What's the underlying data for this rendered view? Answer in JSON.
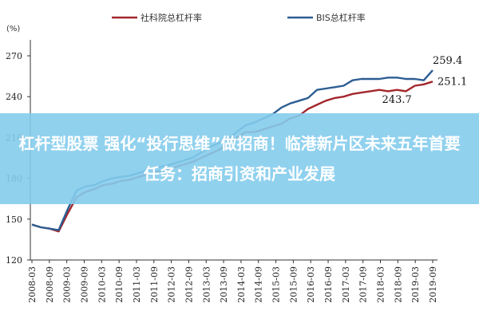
{
  "chart_data": {
    "type": "line",
    "unit": "(%)",
    "ylim": [
      120,
      270
    ],
    "yticks": [
      120,
      150,
      180,
      210,
      240,
      270
    ],
    "x": [
      "2008-03",
      "2008-06",
      "2008-09",
      "2008-12",
      "2009-03",
      "2009-06",
      "2009-09",
      "2009-12",
      "2010-03",
      "2010-06",
      "2010-09",
      "2010-12",
      "2011-03",
      "2011-06",
      "2011-09",
      "2011-12",
      "2012-03",
      "2012-06",
      "2012-09",
      "2012-12",
      "2013-03",
      "2013-06",
      "2013-09",
      "2013-12",
      "2014-03",
      "2014-06",
      "2014-09",
      "2014-12",
      "2015-03",
      "2015-06",
      "2015-09",
      "2015-12",
      "2016-03",
      "2016-06",
      "2016-09",
      "2016-12",
      "2017-03",
      "2017-06",
      "2017-09",
      "2017-12",
      "2018-03",
      "2018-06",
      "2018-09",
      "2018-12",
      "2019-03",
      "2019-06"
    ],
    "xticks": [
      "2008-03",
      "2008-09",
      "2009-03",
      "2009-09",
      "2010-03",
      "2010-09",
      "2011-03",
      "2011-09",
      "2012-03",
      "2012-09",
      "2013-03",
      "2013-09",
      "2014-03",
      "2014-09",
      "2015-03",
      "2015-09",
      "2016-03",
      "2016-09",
      "2017-03",
      "2017-09",
      "2018-03",
      "2018-09",
      "2019-03",
      "2019-09"
    ],
    "grid": false,
    "legend": "top",
    "series": [
      {
        "name": "社科院总杠杆率",
        "color": "#a3272c",
        "values": [
          146,
          144,
          143,
          141,
          154,
          166,
          170,
          172,
          175,
          176,
          178,
          179,
          181,
          183,
          185,
          186,
          188,
          190,
          192,
          195,
          198,
          201,
          205,
          210,
          214,
          214,
          216,
          218,
          220,
          224,
          226,
          231,
          234,
          237,
          239,
          240,
          242,
          243,
          244,
          245,
          244,
          245,
          244,
          248,
          249,
          251.1
        ]
      },
      {
        "name": "BIS总杠杆率",
        "color": "#2c5d93",
        "values": [
          146,
          144,
          143,
          142,
          157,
          171,
          174,
          175,
          178,
          180,
          181,
          182,
          184,
          186,
          188,
          189,
          191,
          193,
          195,
          199,
          203,
          206,
          209,
          214,
          219,
          221,
          224,
          227,
          232,
          235,
          237,
          239,
          245,
          246,
          247,
          248,
          252,
          253,
          253,
          253,
          254,
          254,
          253,
          253,
          252,
          259.4
        ]
      }
    ],
    "annotations": [
      {
        "text": "259.4",
        "x": "2019-06",
        "y": 259.4
      },
      {
        "text": "251.1",
        "x": "2019-06",
        "y": 251.1
      },
      {
        "text": "243.7",
        "x": "2018-09",
        "y": 243.7
      }
    ]
  },
  "banner": {
    "text": "杠杆型股票 强化“投行思维”做招商！临港新片区未来五年首要任务：招商引资和产业发展"
  }
}
